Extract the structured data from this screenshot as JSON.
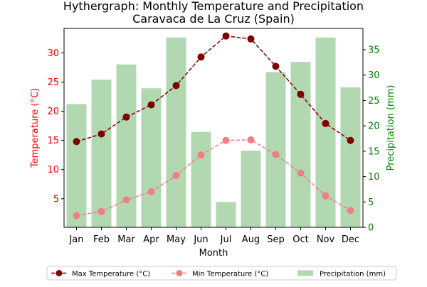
{
  "chart_data": {
    "type": "bar",
    "title": "Hythergraph: Monthly Temperature and Precipitation",
    "subtitle": "Caravaca de La Cruz (Spain)",
    "xlabel": "Month",
    "ylabel_left": "Temperature (°C)",
    "ylabel_right": "Precipitation (mm)",
    "categories": [
      "Jan",
      "Feb",
      "Mar",
      "Apr",
      "May",
      "Jun",
      "Jul",
      "Aug",
      "Sep",
      "Oct",
      "Nov",
      "Dec"
    ],
    "left_axis": {
      "ylim": [
        0.1,
        34.2
      ],
      "ticks": [
        5,
        10,
        15,
        20,
        25,
        30
      ],
      "color": "#ff0000"
    },
    "right_axis": {
      "ylim": [
        0,
        39.2
      ],
      "ticks": [
        0,
        5,
        10,
        15,
        20,
        25,
        30,
        35
      ],
      "color": "#008000"
    },
    "series": [
      {
        "name": "Precipitation (mm)",
        "type": "bar",
        "axis": "right",
        "color": "#b2d8b2",
        "values": [
          24.3,
          29.1,
          32.1,
          27.4,
          37.4,
          18.8,
          5.0,
          15.1,
          30.6,
          32.6,
          37.4,
          27.6
        ]
      },
      {
        "name": "Max Temperature (°C)",
        "type": "line",
        "axis": "left",
        "color": "#800000",
        "dash": "dashed",
        "marker": "circle",
        "values": [
          14.8,
          16.1,
          19.0,
          21.1,
          24.4,
          29.3,
          32.9,
          32.4,
          27.7,
          22.9,
          17.9,
          15.0
        ]
      },
      {
        "name": "Min Temperature (°C)",
        "type": "line",
        "axis": "left",
        "color": "#f08080",
        "dash": "dashed",
        "marker": "circle",
        "values": [
          2.1,
          2.8,
          4.8,
          6.2,
          9.0,
          12.5,
          15.0,
          15.1,
          12.6,
          9.4,
          5.5,
          3.0
        ]
      }
    ],
    "legend": {
      "placement": "bottom-center",
      "items": [
        "Max Temperature (°C)",
        "Min Temperature (°C)",
        "Precipitation (mm)"
      ]
    },
    "grid": false
  }
}
